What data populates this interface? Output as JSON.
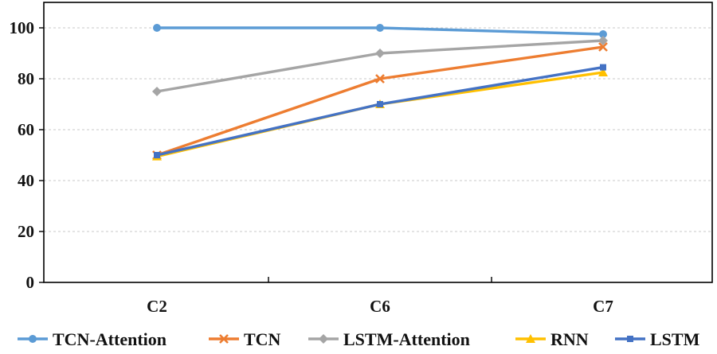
{
  "chart_data": {
    "type": "line",
    "title": "",
    "xlabel": "",
    "ylabel": "",
    "categories": [
      "C2",
      "C6",
      "C7"
    ],
    "ylim": [
      0,
      110
    ],
    "yticks": [
      0,
      20,
      40,
      60,
      80,
      100
    ],
    "grid": true,
    "legend_position": "bottom",
    "series": [
      {
        "name": "TCN-Attention",
        "values": [
          100,
          100,
          97.5
        ],
        "color": "#5B9BD5",
        "marker": "circle"
      },
      {
        "name": "TCN",
        "values": [
          50,
          80,
          92.5
        ],
        "color": "#ED7D31",
        "marker": "x"
      },
      {
        "name": "LSTM-Attention",
        "values": [
          75,
          90,
          95
        ],
        "color": "#A5A5A5",
        "marker": "diamond"
      },
      {
        "name": "RNN",
        "values": [
          49.5,
          70,
          82.5
        ],
        "color": "#FFC000",
        "marker": "triangle"
      },
      {
        "name": "LSTM",
        "values": [
          50,
          70,
          84.5
        ],
        "color": "#4472C4",
        "marker": "square"
      }
    ]
  }
}
